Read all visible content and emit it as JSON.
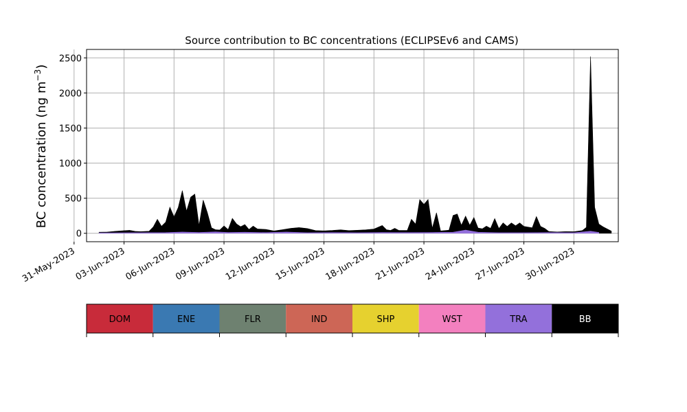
{
  "chart_data": {
    "type": "area",
    "title": "Source contribution to BC concentrations (ECLIPSEv6 and CAMS)",
    "ylabel_main": "BC concentration (ng m",
    "ylabel_exp": "−3",
    "ylabel_close": ")",
    "xlabel": "",
    "ylim": [
      -120,
      2620
    ],
    "xlim": [
      "2023-05-31T18:00",
      "2023-07-02T16:00"
    ],
    "grid": true,
    "x_ticks": [
      "31-May-2023",
      "03-Jun-2023",
      "06-Jun-2023",
      "09-Jun-2023",
      "12-Jun-2023",
      "15-Jun-2023",
      "18-Jun-2023",
      "21-Jun-2023",
      "24-Jun-2023",
      "27-Jun-2023",
      "30-Jun-2023"
    ],
    "x_tick_dates": [
      "2023-05-31",
      "2023-06-03",
      "2023-06-06",
      "2023-06-09",
      "2023-06-12",
      "2023-06-15",
      "2023-06-18",
      "2023-06-21",
      "2023-06-24",
      "2023-06-27",
      "2023-06-30"
    ],
    "y_ticks": [
      0,
      500,
      1000,
      1500,
      2000,
      2500
    ],
    "y_tick_labels": [
      "0",
      "500",
      "1000",
      "1500",
      "2000",
      "2500"
    ],
    "legend": {
      "position": "bottom",
      "entries": [
        {
          "name": "DOM",
          "color": "#c82b3a",
          "text_color": "#000000"
        },
        {
          "name": "ENE",
          "color": "#3a79b2",
          "text_color": "#000000"
        },
        {
          "name": "FLR",
          "color": "#6e8170",
          "text_color": "#000000"
        },
        {
          "name": "IND",
          "color": "#cd6656",
          "text_color": "#000000"
        },
        {
          "name": "SHP",
          "color": "#e6d12f",
          "text_color": "#000000"
        },
        {
          "name": "WST",
          "color": "#f380bf",
          "text_color": "#000000"
        },
        {
          "name": "TRA",
          "color": "#9370db",
          "text_color": "#000000"
        },
        {
          "name": "BB",
          "color": "#000000",
          "text_color": "#ffffff"
        }
      ]
    },
    "series": [
      {
        "name": "TRA",
        "color": "#9370db",
        "points": [
          [
            "2023-06-01T12:00",
            5
          ],
          [
            "2023-06-03T12:00",
            8
          ],
          [
            "2023-06-05T12:00",
            10
          ],
          [
            "2023-06-06T12:00",
            18
          ],
          [
            "2023-06-07T12:00",
            12
          ],
          [
            "2023-06-08T12:00",
            20
          ],
          [
            "2023-06-09T06:00",
            12
          ],
          [
            "2023-06-10T06:00",
            15
          ],
          [
            "2023-06-11T12:00",
            10
          ],
          [
            "2023-06-12T18:00",
            18
          ],
          [
            "2023-06-14T00:00",
            8
          ],
          [
            "2023-06-15T12:00",
            10
          ],
          [
            "2023-06-17T00:00",
            8
          ],
          [
            "2023-06-18T12:00",
            12
          ],
          [
            "2023-06-20T00:00",
            10
          ],
          [
            "2023-06-21T12:00",
            12
          ],
          [
            "2023-06-22T18:00",
            15
          ],
          [
            "2023-06-23T12:00",
            45
          ],
          [
            "2023-06-24T06:00",
            15
          ],
          [
            "2023-06-25T12:00",
            8
          ],
          [
            "2023-06-27T00:00",
            8
          ],
          [
            "2023-06-28T12:00",
            10
          ],
          [
            "2023-06-30T00:00",
            8
          ],
          [
            "2023-07-01T00:00",
            30
          ],
          [
            "2023-07-01T12:00",
            12
          ]
        ]
      },
      {
        "name": "BB",
        "color": "#000000",
        "points": [
          [
            "2023-06-01T12:00",
            10
          ],
          [
            "2023-06-02T00:00",
            12
          ],
          [
            "2023-06-02T12:00",
            22
          ],
          [
            "2023-06-03T00:00",
            30
          ],
          [
            "2023-06-03T08:00",
            35
          ],
          [
            "2023-06-03T16:00",
            20
          ],
          [
            "2023-06-04T00:00",
            15
          ],
          [
            "2023-06-04T12:00",
            20
          ],
          [
            "2023-06-04T18:00",
            80
          ],
          [
            "2023-06-05T00:00",
            190
          ],
          [
            "2023-06-05T06:00",
            90
          ],
          [
            "2023-06-05T12:00",
            150
          ],
          [
            "2023-06-05T18:00",
            360
          ],
          [
            "2023-06-06T00:00",
            220
          ],
          [
            "2023-06-06T06:00",
            350
          ],
          [
            "2023-06-06T12:00",
            590
          ],
          [
            "2023-06-06T18:00",
            300
          ],
          [
            "2023-06-07T00:00",
            500
          ],
          [
            "2023-06-07T06:00",
            545
          ],
          [
            "2023-06-07T12:00",
            100
          ],
          [
            "2023-06-07T18:00",
            460
          ],
          [
            "2023-06-08T00:00",
            280
          ],
          [
            "2023-06-08T06:00",
            60
          ],
          [
            "2023-06-08T12:00",
            30
          ],
          [
            "2023-06-08T18:00",
            30
          ],
          [
            "2023-06-09T00:00",
            90
          ],
          [
            "2023-06-09T06:00",
            40
          ],
          [
            "2023-06-09T12:00",
            200
          ],
          [
            "2023-06-09T18:00",
            120
          ],
          [
            "2023-06-10T00:00",
            80
          ],
          [
            "2023-06-10T06:00",
            110
          ],
          [
            "2023-06-10T12:00",
            40
          ],
          [
            "2023-06-10T18:00",
            90
          ],
          [
            "2023-06-11T00:00",
            50
          ],
          [
            "2023-06-11T12:00",
            45
          ],
          [
            "2023-06-12T00:00",
            20
          ],
          [
            "2023-06-12T12:00",
            35
          ],
          [
            "2023-06-13T00:00",
            55
          ],
          [
            "2023-06-13T12:00",
            70
          ],
          [
            "2023-06-14T00:00",
            60
          ],
          [
            "2023-06-14T12:00",
            30
          ],
          [
            "2023-06-15T00:00",
            25
          ],
          [
            "2023-06-15T12:00",
            30
          ],
          [
            "2023-06-16T00:00",
            40
          ],
          [
            "2023-06-16T12:00",
            30
          ],
          [
            "2023-06-17T00:00",
            35
          ],
          [
            "2023-06-17T12:00",
            40
          ],
          [
            "2023-06-18T00:00",
            50
          ],
          [
            "2023-06-18T12:00",
            100
          ],
          [
            "2023-06-18T18:00",
            40
          ],
          [
            "2023-06-19T00:00",
            30
          ],
          [
            "2023-06-19T06:00",
            60
          ],
          [
            "2023-06-19T12:00",
            30
          ],
          [
            "2023-06-20T00:00",
            30
          ],
          [
            "2023-06-20T06:00",
            190
          ],
          [
            "2023-06-20T12:00",
            120
          ],
          [
            "2023-06-20T18:00",
            470
          ],
          [
            "2023-06-21T00:00",
            400
          ],
          [
            "2023-06-21T06:00",
            470
          ],
          [
            "2023-06-21T12:00",
            60
          ],
          [
            "2023-06-21T18:00",
            280
          ],
          [
            "2023-06-22T00:00",
            20
          ],
          [
            "2023-06-22T12:00",
            30
          ],
          [
            "2023-06-22T18:00",
            240
          ],
          [
            "2023-06-23T00:00",
            250
          ],
          [
            "2023-06-23T06:00",
            80
          ],
          [
            "2023-06-23T12:00",
            200
          ],
          [
            "2023-06-23T18:00",
            80
          ],
          [
            "2023-06-24T00:00",
            200
          ],
          [
            "2023-06-24T06:00",
            60
          ],
          [
            "2023-06-24T12:00",
            50
          ],
          [
            "2023-06-24T18:00",
            90
          ],
          [
            "2023-06-25T00:00",
            60
          ],
          [
            "2023-06-25T06:00",
            200
          ],
          [
            "2023-06-25T12:00",
            60
          ],
          [
            "2023-06-25T18:00",
            140
          ],
          [
            "2023-06-26T00:00",
            90
          ],
          [
            "2023-06-26T06:00",
            140
          ],
          [
            "2023-06-26T12:00",
            100
          ],
          [
            "2023-06-26T18:00",
            140
          ],
          [
            "2023-06-27T00:00",
            90
          ],
          [
            "2023-06-27T06:00",
            80
          ],
          [
            "2023-06-27T12:00",
            70
          ],
          [
            "2023-06-27T18:00",
            230
          ],
          [
            "2023-06-28T00:00",
            90
          ],
          [
            "2023-06-28T06:00",
            60
          ],
          [
            "2023-06-28T12:00",
            15
          ],
          [
            "2023-06-29T00:00",
            10
          ],
          [
            "2023-06-29T12:00",
            15
          ],
          [
            "2023-06-30T00:00",
            15
          ],
          [
            "2023-06-30T12:00",
            20
          ],
          [
            "2023-06-30T18:00",
            60
          ],
          [
            "2023-07-01T00:00",
            2490
          ],
          [
            "2023-07-01T06:00",
            350
          ],
          [
            "2023-07-01T12:00",
            120
          ],
          [
            "2023-07-01T18:00",
            80
          ],
          [
            "2023-07-02T00:00",
            50
          ],
          [
            "2023-07-02T06:00",
            20
          ]
        ]
      }
    ]
  }
}
